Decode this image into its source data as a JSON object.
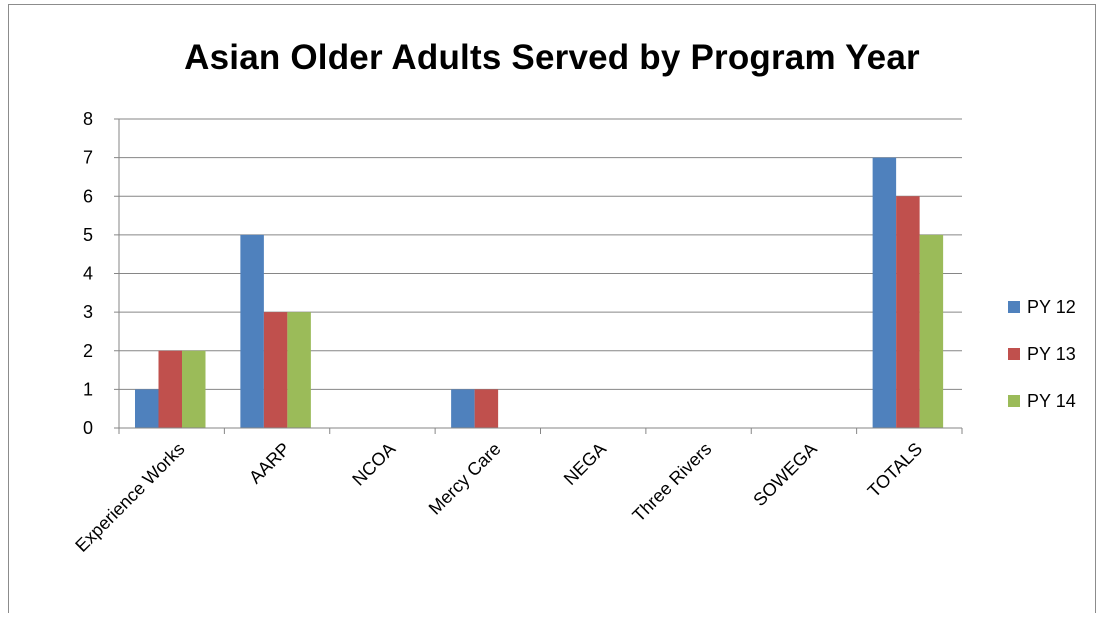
{
  "chart_data": {
    "type": "bar",
    "title": "Asian Older Adults Served by Program Year",
    "xlabel": "",
    "ylabel": "",
    "categories": [
      "Experience Works",
      "AARP",
      "NCOA",
      "Mercy Care",
      "NEGA",
      "Three Rivers",
      "SOWEGA",
      "TOTALS"
    ],
    "series": [
      {
        "name": "PY 12",
        "color": "#4F81BD",
        "values": [
          1,
          5,
          0,
          1,
          0,
          0,
          0,
          7
        ]
      },
      {
        "name": "PY 13",
        "color": "#C0504D",
        "values": [
          2,
          3,
          0,
          1,
          0,
          0,
          0,
          6
        ]
      },
      {
        "name": "PY 14",
        "color": "#9BBB59",
        "values": [
          2,
          3,
          0,
          0,
          0,
          0,
          0,
          5
        ]
      }
    ],
    "ylim": [
      0,
      8
    ],
    "yticks": [
      0,
      1,
      2,
      3,
      4,
      5,
      6,
      7,
      8
    ],
    "grid": true,
    "legend": "right"
  }
}
